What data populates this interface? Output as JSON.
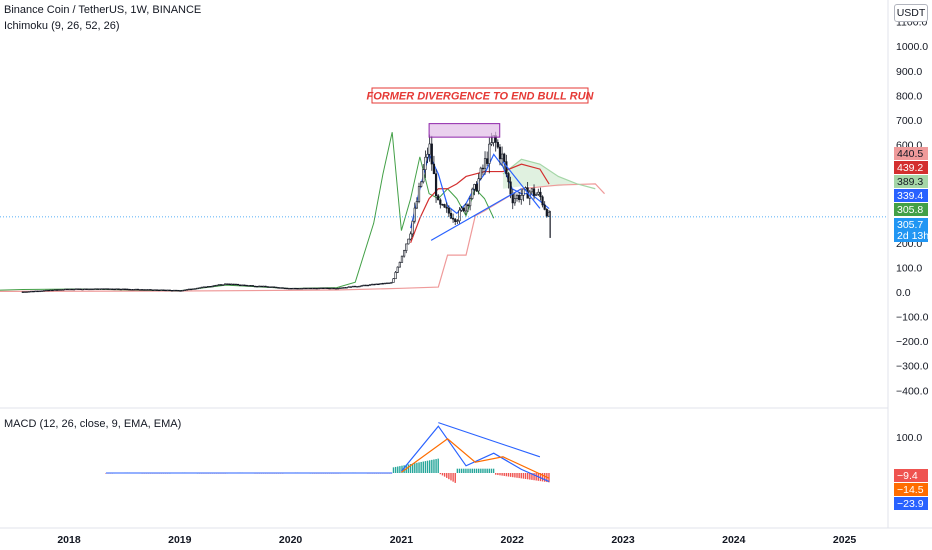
{
  "header": {
    "symbol_line": "Binance Coin / TetherUS, 1W, BINANCE",
    "indicator_ichimoku": "Ichimoku (9, 26, 52, 26)",
    "indicator_macd": "MACD (12, 26, close, 9, EMA, EMA)",
    "currency_button": "USDT"
  },
  "annotation": {
    "text": "FORMER DIVERGENCE TO END BULL RUN",
    "color": "#e53935"
  },
  "colors": {
    "candle": "#131722",
    "lagging_span": "#43a047",
    "base_line": "#d32f2f",
    "conversion_line": "#2962ff",
    "leading_span_b": "#ef9a9a",
    "leading_span_a": "#a5d6a7",
    "macd_line": "#2962ff",
    "signal_line": "#ff6d00",
    "hist_pos": "#26a69a",
    "hist_neg": "#ef5350",
    "trendline": "#2962ff",
    "box_fill": "#e1bee7",
    "box_stroke": "#8e24aa"
  },
  "chart_data": [
    {
      "type": "line",
      "name": "price",
      "x_ticks": [
        "2018",
        "2019",
        "2020",
        "2021",
        "2022",
        "2023",
        "2024",
        "2025"
      ],
      "y_ticks": [
        "1100.0",
        "1000.0",
        "900.0",
        "800.0",
        "700.0",
        "600.0",
        "200.0",
        "100.0",
        "0.0",
        "−100.0",
        "−200.0",
        "−300.0",
        "−400.0"
      ],
      "ylim": [
        -450,
        1150
      ],
      "candles_close": [
        {
          "x": "2017-08",
          "y": 1
        },
        {
          "x": "2018-01",
          "y": 12
        },
        {
          "x": "2018-06",
          "y": 13
        },
        {
          "x": "2019-01",
          "y": 6
        },
        {
          "x": "2019-06",
          "y": 33
        },
        {
          "x": "2020-01",
          "y": 15
        },
        {
          "x": "2020-06",
          "y": 16
        },
        {
          "x": "2020-12",
          "y": 38
        },
        {
          "x": "2021-02",
          "y": 250
        },
        {
          "x": "2021-04",
          "y": 600
        },
        {
          "x": "2021-05",
          "y": 350
        },
        {
          "x": "2021-07",
          "y": 300
        },
        {
          "x": "2021-09",
          "y": 420
        },
        {
          "x": "2021-11",
          "y": 620
        },
        {
          "x": "2021-12",
          "y": 540
        },
        {
          "x": "2022-01",
          "y": 380
        },
        {
          "x": "2022-03",
          "y": 410
        },
        {
          "x": "2022-04",
          "y": 390
        },
        {
          "x": "2022-05",
          "y": 305.7
        }
      ],
      "badges": [
        {
          "label": "440.5",
          "value": 440.5,
          "color": "#ef9a9a",
          "text_dark": true
        },
        {
          "label": "439.2",
          "value": 439.2,
          "color": "#d32f2f",
          "text_dark": false
        },
        {
          "label": "389.3",
          "value": 389.3,
          "color": "#a5d6a7",
          "text_dark": true
        },
        {
          "label": "339.4",
          "value": 339.4,
          "color": "#2962ff",
          "text_dark": false
        },
        {
          "label": "305.8",
          "value": 305.8,
          "color": "#43a047",
          "text_dark": false
        },
        {
          "label": "305.7",
          "value": 305.7,
          "color": "#2196f3",
          "text_dark": false,
          "sub": "2d 13h"
        }
      ]
    },
    {
      "type": "line",
      "name": "MACD",
      "y_ticks": [
        "100.0"
      ],
      "ylim": [
        -180,
        150
      ],
      "macd": [
        {
          "x": "2021-01",
          "y": 5
        },
        {
          "x": "2021-05",
          "y": 130
        },
        {
          "x": "2021-08",
          "y": 20
        },
        {
          "x": "2021-11",
          "y": 55
        },
        {
          "x": "2022-02",
          "y": 10
        },
        {
          "x": "2022-05",
          "y": -23.9
        }
      ],
      "signal": [
        {
          "x": "2021-01",
          "y": 2
        },
        {
          "x": "2021-06",
          "y": 95
        },
        {
          "x": "2021-09",
          "y": 30
        },
        {
          "x": "2021-12",
          "y": 45
        },
        {
          "x": "2022-05",
          "y": -14.5
        }
      ],
      "badges": [
        {
          "label": "−9.4",
          "value": -9.4,
          "color": "#ef5350"
        },
        {
          "label": "−14.5",
          "value": -14.5,
          "color": "#ff6d00"
        },
        {
          "label": "−23.9",
          "value": -23.9,
          "color": "#2962ff"
        }
      ]
    }
  ]
}
